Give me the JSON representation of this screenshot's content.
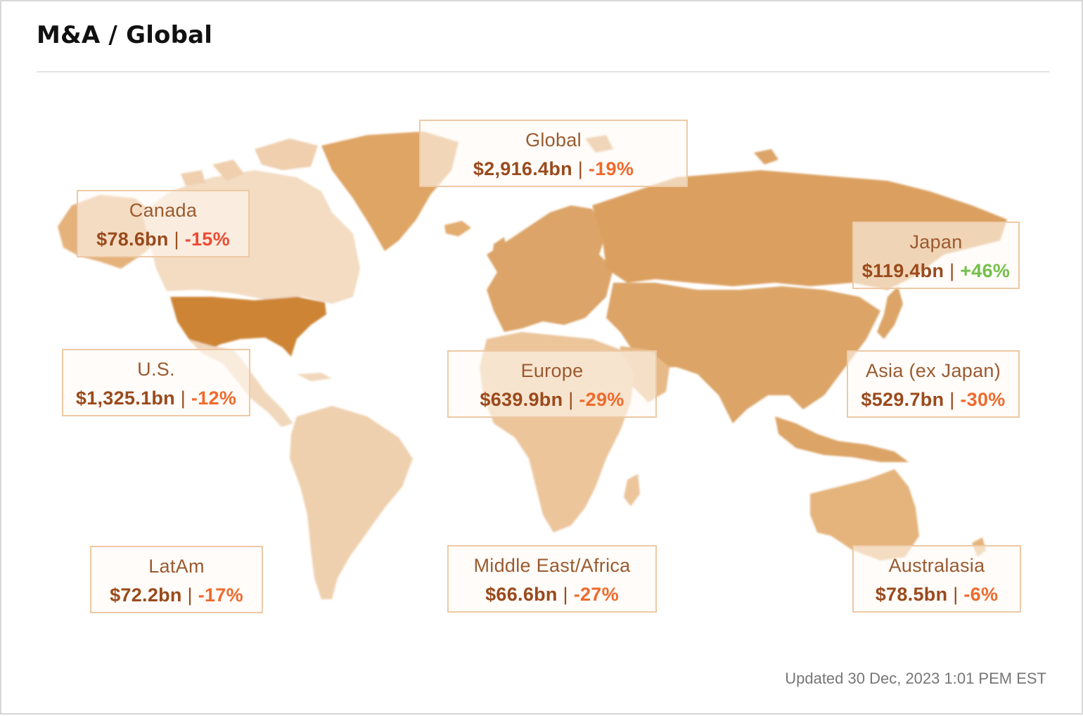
{
  "title": "M&A / Global",
  "updated": "Updated 30 Dec, 2023 1:01 PEM EST",
  "colors": {
    "land_light": "#f1d6b8",
    "land_mid": "#e6b987",
    "land_dark": "#dba366",
    "us": "#cf8838",
    "value_text": "#9a4a1c",
    "change_negative": "#ef6a2c",
    "change_positive": "#74c04a"
  },
  "regions": [
    {
      "id": "global",
      "name": "Global",
      "value": "$2,916.4bn",
      "separator": "|",
      "change": "-19%"
    },
    {
      "id": "canada",
      "name": "Canada",
      "value": "$78.6bn",
      "separator": "|",
      "change": "-15%"
    },
    {
      "id": "japan",
      "name": "Japan",
      "value": "$119.4bn",
      "separator": "|",
      "change": "+46%"
    },
    {
      "id": "us",
      "name": "U.S.",
      "value": "$1,325.1bn",
      "separator": "|",
      "change": "-12%"
    },
    {
      "id": "europe",
      "name": "Europe",
      "value": "$639.9bn",
      "separator": "|",
      "change": "-29%"
    },
    {
      "id": "asia",
      "name": "Asia (ex Japan)",
      "value": "$529.7bn",
      "separator": "|",
      "change": "-30%"
    },
    {
      "id": "latam",
      "name": "LatAm",
      "value": "$72.2bn",
      "separator": "|",
      "change": "-17%"
    },
    {
      "id": "mea",
      "name": "Middle East/Africa",
      "value": "$66.6bn",
      "separator": "|",
      "change": "-27%"
    },
    {
      "id": "australasia",
      "name": "Australasia",
      "value": "$78.5bn",
      "separator": "|",
      "change": "-6%"
    }
  ]
}
